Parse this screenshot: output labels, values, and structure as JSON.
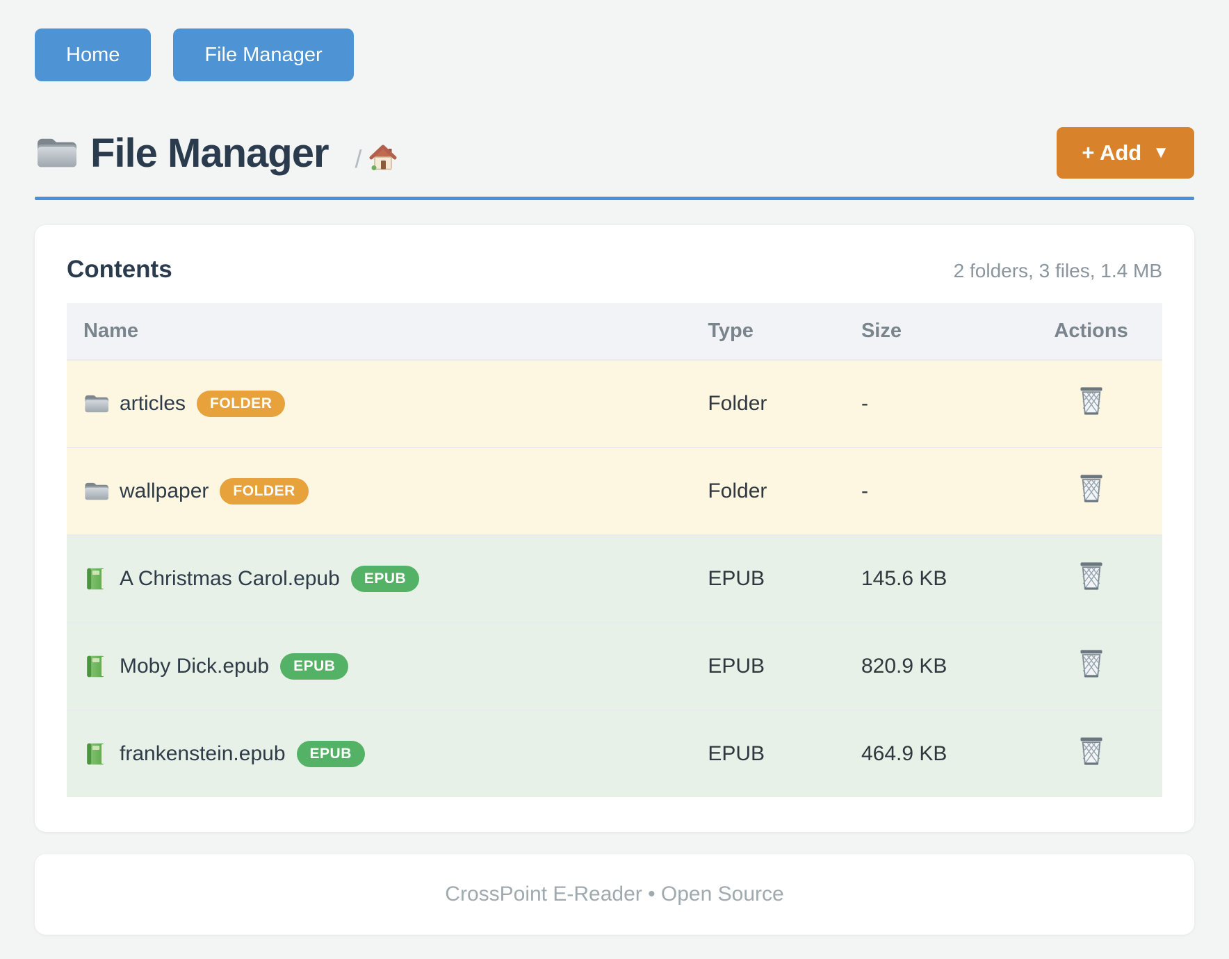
{
  "nav": {
    "home_label": "Home",
    "file_manager_label": "File Manager"
  },
  "header": {
    "title": "File Manager",
    "title_icon": "folder-icon",
    "breadcrumb_separator": "/",
    "breadcrumb_home_icon": "home-icon",
    "add_button_label": "+ Add",
    "add_button_caret": "▼"
  },
  "contents": {
    "heading": "Contents",
    "summary": "2 folders, 3 files, 1.4 MB",
    "columns": [
      "Name",
      "Type",
      "Size",
      "Actions"
    ],
    "rows": [
      {
        "name": "articles",
        "badge": "FOLDER",
        "type": "Folder",
        "size": "-",
        "kind": "folder",
        "icon": "folder-icon",
        "action_icon": "trash-icon"
      },
      {
        "name": "wallpaper",
        "badge": "FOLDER",
        "type": "Folder",
        "size": "-",
        "kind": "folder",
        "icon": "folder-icon",
        "action_icon": "trash-icon"
      },
      {
        "name": "A Christmas Carol.epub",
        "badge": "EPUB",
        "type": "EPUB",
        "size": "145.6 KB",
        "kind": "epub",
        "icon": "book-icon",
        "action_icon": "trash-icon"
      },
      {
        "name": "Moby Dick.epub",
        "badge": "EPUB",
        "type": "EPUB",
        "size": "820.9 KB",
        "kind": "epub",
        "icon": "book-icon",
        "action_icon": "trash-icon"
      },
      {
        "name": "frankenstein.epub",
        "badge": "EPUB",
        "type": "EPUB",
        "size": "464.9 KB",
        "kind": "epub",
        "icon": "book-icon",
        "action_icon": "trash-icon"
      }
    ]
  },
  "footer": {
    "text": "CrossPoint E-Reader • Open Source"
  },
  "colors": {
    "nav_button": "#4e93d3",
    "add_button": "#d8832c",
    "divider": "#4b90d6",
    "title_text": "#2b3b4e",
    "folder_badge": "#e8a23c",
    "epub_badge": "#54b266",
    "folder_row_bg": "#fdf6e1",
    "epub_row_bg": "#e7f1e7",
    "header_row_bg": "#f1f3f6",
    "page_bg": "#f3f4f4"
  }
}
